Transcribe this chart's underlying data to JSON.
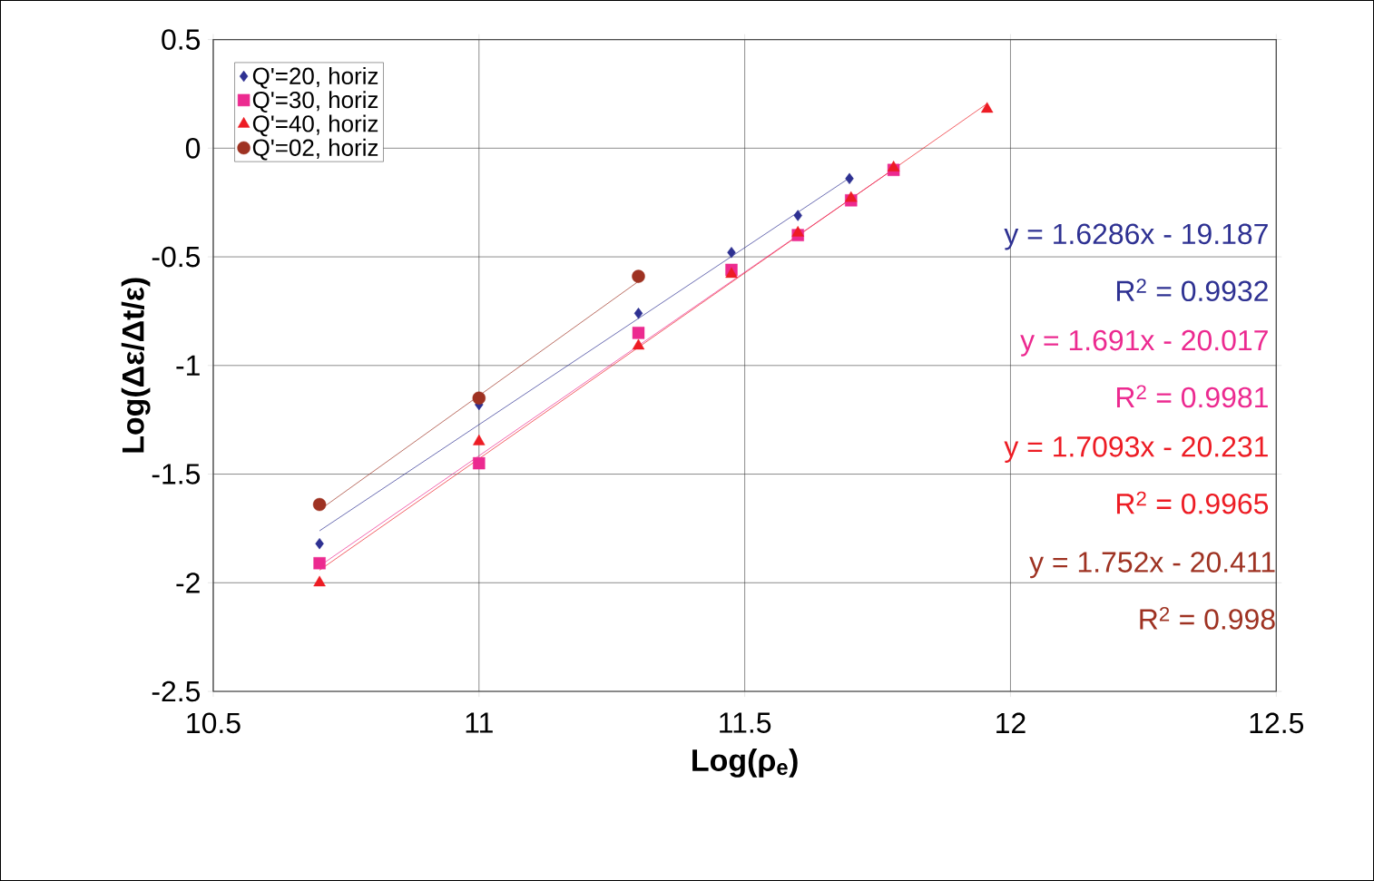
{
  "chart_data": {
    "type": "scatter",
    "xlabel": "Log(ρ$_{e}$)",
    "ylabel": "Log(Δε/Δt/ε)",
    "xlim": [
      10.5,
      12.5
    ],
    "ylim": [
      -2.5,
      0.5
    ],
    "xticks": [
      10.5,
      11,
      11.5,
      12,
      12.5
    ],
    "yticks": [
      {
        "value": -2.5,
        "label": "-2.5"
      },
      {
        "value": -2,
        "label": "-2"
      },
      {
        "value": -1.5,
        "label": "-1.5"
      },
      {
        "value": -1,
        "label": "-1"
      },
      {
        "value": -0.5,
        "label": "-0.5"
      },
      {
        "value": 0,
        "label": "0"
      },
      {
        "value": 0.5,
        "label": "0.5"
      }
    ],
    "grid": true,
    "legend": "top left",
    "series": [
      {
        "name": "Q'=20, horiz",
        "color": "#2e3192",
        "marker": "diamond",
        "x": [
          10.7,
          11.0,
          11.3,
          11.475,
          11.6,
          11.697
        ],
        "values": [
          -1.82,
          -1.18,
          -0.76,
          -0.48,
          -0.31,
          -0.14
        ]
      },
      {
        "name": "Q'=30, horiz",
        "color": "#ec2a90",
        "marker": "square",
        "x": [
          10.7,
          11.0,
          11.3,
          11.475,
          11.6,
          11.7,
          11.78
        ],
        "values": [
          -1.91,
          -1.45,
          -0.85,
          -0.56,
          -0.4,
          -0.24,
          -0.1
        ]
      },
      {
        "name": "Q'=40, horiz",
        "color": "#ed1c24",
        "marker": "triangle",
        "x": [
          10.7,
          11.0,
          11.3,
          11.475,
          11.6,
          11.7,
          11.78,
          11.956
        ],
        "values": [
          -2.0,
          -1.35,
          -0.91,
          -0.58,
          -0.39,
          -0.23,
          -0.09,
          0.18
        ]
      },
      {
        "name": "Q'=02, horiz",
        "color": "#9e3222",
        "marker": "circle",
        "x": [
          10.7,
          11.0,
          11.3
        ],
        "values": [
          -1.64,
          -1.15,
          -0.59
        ]
      },
      {
        "type": "line",
        "color": "#2e3192",
        "x": [
          10.7,
          11.7
        ],
        "values": [
          -1.761,
          -0.132
        ]
      },
      {
        "type": "line",
        "color": "#ec2a90",
        "x": [
          10.7,
          11.78
        ],
        "values": [
          -1.923,
          -0.097
        ]
      },
      {
        "type": "line",
        "color": "#ed1c24",
        "x": [
          10.7,
          11.956
        ],
        "values": [
          -1.942,
          0.205
        ]
      },
      {
        "type": "line",
        "color": "#9e3222",
        "x": [
          10.7,
          11.3
        ],
        "values": [
          -1.665,
          -0.613
        ]
      }
    ],
    "annotations": [
      "y = 1.6286x - 19.187",
      "R$^{2}$ = 0.9932",
      "y = 1.691x - 20.017",
      "R$^{2}$ = 0.9981",
      "y = 1.7093x - 20.231",
      "R$^{2}$ = 0.9965",
      "y = 1.752x - 20.411",
      "R$^{2}$ = 0.998"
    ]
  }
}
